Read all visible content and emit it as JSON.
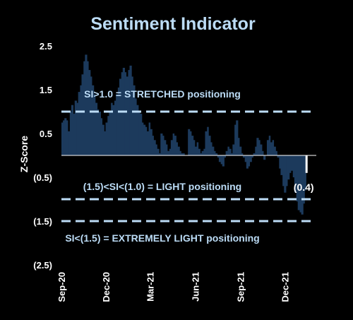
{
  "chart_data": {
    "type": "bar",
    "title": "Sentiment Indicator",
    "xlabel": "",
    "ylabel": "Z-Score",
    "ylim": [
      -2.5,
      2.5
    ],
    "y_ticks": [
      2.5,
      1.5,
      0.5,
      -0.5,
      -1.5,
      -2.5
    ],
    "y_tick_labels": [
      "2.5",
      "1.5",
      "0.5",
      "(0.5)",
      "(1.5)",
      "(2.5)"
    ],
    "x_range": [
      "2020-09-01",
      "2022-01-31"
    ],
    "x_ticks": [
      "2020-09-01",
      "2020-12-01",
      "2021-03-01",
      "2021-06-01",
      "2021-09-01",
      "2021-12-01"
    ],
    "x_tick_labels": [
      "Sep-20",
      "Dec-20",
      "Mar-21",
      "Jun-21",
      "Sep-21",
      "Dec-21"
    ],
    "grid": false,
    "colors": {
      "bar": "#1c3a5c",
      "background": "#000000",
      "reference_line": "#bcdcf6",
      "title": "#bcdcf6",
      "annotation_text": "#bcdcf6",
      "text": "#ffffff",
      "latest_marker": "#ffffff"
    },
    "reference_lines": [
      {
        "value": 1.0,
        "label": "SI>1.0 = STRETCHED positioning"
      },
      {
        "value": -1.0,
        "label": "(1.5)<SI<(1.0) = LIGHT positioning"
      },
      {
        "value": -1.5,
        "label": "SI<(1.5) = EXTREMELY LIGHT positioning"
      }
    ],
    "latest": {
      "x": "2022-01-14",
      "value": -0.4,
      "label": "(0.4)"
    },
    "series": [
      {
        "x": [
          "2020-09-01",
          "2020-09-04",
          "2020-09-07",
          "2020-09-11",
          "2020-09-14",
          "2020-09-18",
          "2020-09-21",
          "2020-09-25",
          "2020-09-28",
          "2020-10-02",
          "2020-10-05",
          "2020-10-09",
          "2020-10-12",
          "2020-10-16",
          "2020-10-19",
          "2020-10-23",
          "2020-10-26",
          "2020-10-30",
          "2020-11-02",
          "2020-11-06",
          "2020-11-09",
          "2020-11-13",
          "2020-11-16",
          "2020-11-20",
          "2020-11-23",
          "2020-11-27",
          "2020-11-30",
          "2020-12-04",
          "2020-12-07",
          "2020-12-11",
          "2020-12-14",
          "2020-12-18",
          "2020-12-21",
          "2020-12-25",
          "2020-12-28",
          "2021-01-01",
          "2021-01-04",
          "2021-01-08",
          "2021-01-11",
          "2021-01-15",
          "2021-01-18",
          "2021-01-22",
          "2021-01-25",
          "2021-01-29",
          "2021-02-01",
          "2021-02-05",
          "2021-02-08",
          "2021-02-12",
          "2021-02-15",
          "2021-02-19",
          "2021-02-22",
          "2021-02-26",
          "2021-03-01",
          "2021-03-05",
          "2021-03-08",
          "2021-03-12",
          "2021-03-15",
          "2021-03-19",
          "2021-03-22",
          "2021-03-26",
          "2021-03-29",
          "2021-04-02",
          "2021-04-05",
          "2021-04-09",
          "2021-04-12",
          "2021-04-16",
          "2021-04-19",
          "2021-04-23",
          "2021-04-26",
          "2021-04-30",
          "2021-05-03",
          "2021-05-07",
          "2021-05-10",
          "2021-05-14",
          "2021-05-17",
          "2021-05-21",
          "2021-05-24",
          "2021-05-28",
          "2021-05-31",
          "2021-06-04",
          "2021-06-07",
          "2021-06-11",
          "2021-06-14",
          "2021-06-18",
          "2021-06-21",
          "2021-06-25",
          "2021-06-28",
          "2021-07-02",
          "2021-07-05",
          "2021-07-09",
          "2021-07-12",
          "2021-07-16",
          "2021-07-19",
          "2021-07-23",
          "2021-07-26",
          "2021-07-30",
          "2021-08-02",
          "2021-08-06",
          "2021-08-09",
          "2021-08-13",
          "2021-08-16",
          "2021-08-20",
          "2021-08-23",
          "2021-08-27",
          "2021-08-30",
          "2021-09-03",
          "2021-09-06",
          "2021-09-10",
          "2021-09-13",
          "2021-09-17",
          "2021-09-20",
          "2021-09-24",
          "2021-09-27",
          "2021-10-01",
          "2021-10-04",
          "2021-10-08",
          "2021-10-11",
          "2021-10-15",
          "2021-10-18",
          "2021-10-22",
          "2021-10-25",
          "2021-10-29",
          "2021-11-01",
          "2021-11-05",
          "2021-11-08",
          "2021-11-12",
          "2021-11-15",
          "2021-11-19",
          "2021-11-22",
          "2021-11-26",
          "2021-11-29",
          "2021-12-03",
          "2021-12-06",
          "2021-12-10",
          "2021-12-13",
          "2021-12-17",
          "2021-12-20",
          "2021-12-24",
          "2021-12-27",
          "2021-12-31",
          "2022-01-03",
          "2022-01-07",
          "2022-01-10"
        ],
        "values": [
          0.75,
          0.8,
          0.85,
          0.8,
          0.55,
          1.0,
          1.15,
          0.95,
          1.25,
          1.2,
          1.45,
          1.6,
          1.85,
          2.15,
          2.3,
          2.15,
          1.95,
          1.8,
          1.6,
          1.4,
          1.2,
          1.05,
          1.0,
          0.85,
          0.7,
          0.55,
          0.75,
          0.9,
          1.0,
          1.2,
          1.15,
          1.25,
          1.4,
          1.55,
          1.75,
          1.9,
          2.0,
          1.9,
          1.8,
          1.95,
          2.05,
          1.8,
          1.6,
          1.3,
          1.15,
          1.0,
          0.95,
          0.75,
          0.7,
          0.65,
          0.55,
          0.75,
          0.6,
          0.45,
          0.35,
          0.25,
          0.15,
          0.05,
          0.5,
          0.45,
          0.35,
          0.25,
          0.1,
          0.15,
          0.35,
          0.5,
          0.45,
          0.3,
          0.2,
          0.1,
          0.05,
          0.05,
          0.0,
          0.0,
          0.6,
          0.55,
          0.45,
          0.35,
          0.2,
          0.3,
          0.15,
          0.05,
          0.1,
          0.15,
          0.55,
          0.65,
          0.45,
          0.3,
          0.2,
          0.1,
          0.05,
          -0.05,
          -0.15,
          -0.2,
          -0.25,
          -0.05,
          0.1,
          0.2,
          0.15,
          0.05,
          0.25,
          0.7,
          0.8,
          0.4,
          0.2,
          0.05,
          -0.05,
          -0.15,
          -0.3,
          -0.25,
          -0.15,
          -0.05,
          0.05,
          0.2,
          0.4,
          0.35,
          0.25,
          0.1,
          -0.1,
          0.0,
          0.35,
          0.45,
          0.3,
          0.35,
          0.2,
          0.1,
          -0.05,
          -0.3,
          -0.45,
          -0.7,
          -0.85,
          -0.7,
          -0.55,
          -0.4,
          -0.35,
          -0.5,
          -0.85,
          -1.05,
          -1.25,
          -1.3,
          -1.35,
          -1.1,
          -0.8
        ]
      }
    ]
  }
}
